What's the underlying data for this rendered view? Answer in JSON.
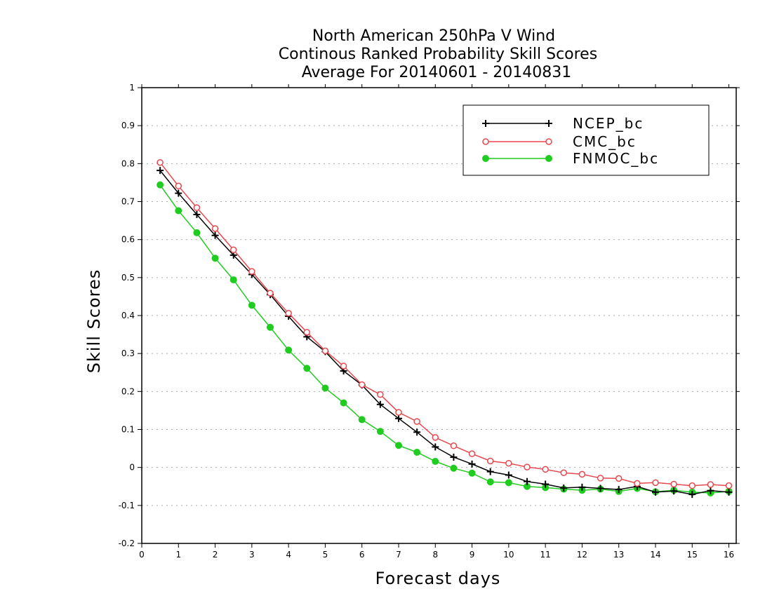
{
  "chart_data": {
    "type": "line",
    "title": [
      "North American 250hPa V Wind",
      "Continous Ranked Probability Skill Scores",
      "Average For 20140601 - 20140831"
    ],
    "xlabel": "Forecast days",
    "ylabel": "Skill Scores",
    "xlim": [
      0,
      16.2
    ],
    "ylim": [
      -0.2,
      1
    ],
    "xticks": [
      0,
      1,
      2,
      3,
      4,
      5,
      6,
      7,
      8,
      9,
      10,
      11,
      12,
      13,
      14,
      15,
      16
    ],
    "yticks": [
      -0.2,
      -0.1,
      0,
      0.1,
      0.2,
      0.3,
      0.4,
      0.5,
      0.6,
      0.7,
      0.8,
      0.9,
      1
    ],
    "ytick_labels": [
      "-0.2",
      "-0.1",
      "0",
      "0.1",
      "0.2",
      "0.3",
      "0.4",
      "0.5",
      "0.6",
      "0.7",
      "0.8",
      "0.9",
      "1"
    ],
    "grid": "horizontal dotted",
    "legend_position": "top-right",
    "x": [
      0.5,
      1,
      1.5,
      2,
      2.5,
      3,
      3.5,
      4,
      4.5,
      5,
      5.5,
      6,
      6.5,
      7,
      7.5,
      8,
      8.5,
      9,
      9.5,
      10,
      10.5,
      11,
      11.5,
      12,
      12.5,
      13,
      13.5,
      14,
      14.5,
      15,
      15.5,
      16
    ],
    "series": [
      {
        "name": "NCEP_bc",
        "color": "#000000",
        "marker": "plus",
        "values": [
          0.782,
          0.722,
          0.666,
          0.611,
          0.559,
          0.508,
          0.455,
          0.398,
          0.344,
          0.305,
          0.254,
          0.217,
          0.166,
          0.129,
          0.093,
          0.054,
          0.027,
          0.009,
          -0.011,
          -0.02,
          -0.037,
          -0.044,
          -0.054,
          -0.052,
          -0.055,
          -0.058,
          -0.05,
          -0.065,
          -0.062,
          -0.071,
          -0.061,
          -0.065
        ]
      },
      {
        "name": "CMC_bc",
        "color": "#e8474d",
        "marker": "open-circle",
        "values": [
          0.803,
          0.741,
          0.684,
          0.629,
          0.573,
          0.516,
          0.459,
          0.406,
          0.356,
          0.307,
          0.267,
          0.218,
          0.192,
          0.145,
          0.121,
          0.079,
          0.057,
          0.036,
          0.017,
          0.011,
          0.001,
          -0.005,
          -0.014,
          -0.018,
          -0.028,
          -0.029,
          -0.042,
          -0.04,
          -0.044,
          -0.048,
          -0.045,
          -0.048
        ]
      },
      {
        "name": "FNMOC_bc",
        "color": "#1fcc1f",
        "marker": "filled-circle",
        "values": [
          0.744,
          0.676,
          0.618,
          0.551,
          0.494,
          0.427,
          0.369,
          0.309,
          0.261,
          0.209,
          0.17,
          0.126,
          0.095,
          0.058,
          0.04,
          0.016,
          -0.002,
          -0.015,
          -0.038,
          -0.04,
          -0.05,
          -0.053,
          -0.057,
          -0.06,
          -0.057,
          -0.063,
          -0.055,
          -0.064,
          -0.06,
          -0.065,
          -0.067,
          -0.063
        ]
      }
    ]
  }
}
